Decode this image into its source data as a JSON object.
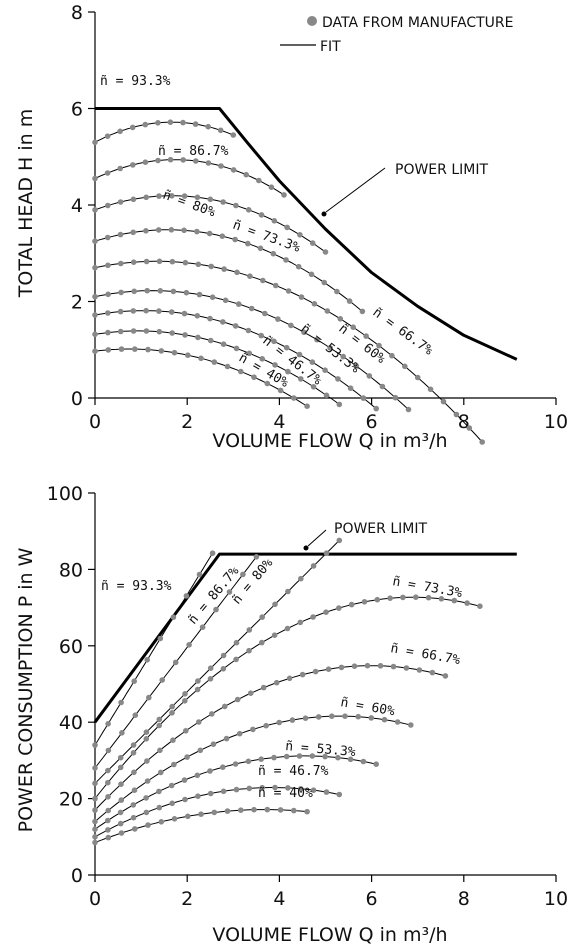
{
  "chart_data": [
    {
      "type": "line",
      "xlabel": "VOLUME FLOW Q in m³/h",
      "ylabel": "TOTAL HEAD H in m",
      "xlim": [
        0,
        10
      ],
      "ylim": [
        0,
        8
      ],
      "xticks": [
        0,
        2,
        4,
        6,
        8,
        10
      ],
      "yticks": [
        0,
        2,
        4,
        6,
        8
      ],
      "legend": {
        "position": "top-right",
        "entries": [
          {
            "name": "DATA FROM MANUFACTURE",
            "marker": "dot"
          },
          {
            "name": "FIT",
            "marker": "line"
          }
        ]
      },
      "power_limit_label": "POWER LIMIT",
      "power_limit": {
        "x": [
          0,
          2.7,
          3.3,
          4.0,
          5.0,
          6.0,
          7.0,
          8.0,
          9.15
        ],
        "y": [
          6.0,
          6.0,
          5.3,
          4.5,
          3.5,
          2.6,
          1.9,
          1.3,
          0.8
        ]
      },
      "series": [
        {
          "label": "ñ = 93.3%",
          "a": 5.3,
          "b": 0.5,
          "c": 0.15,
          "xmax": 3.0
        },
        {
          "label": "ñ = 86.7%",
          "a": 4.55,
          "b": 0.45,
          "c": 0.13,
          "xmax": 4.1
        },
        {
          "label": "ñ = 80%",
          "a": 3.9,
          "b": 0.35,
          "c": 0.105,
          "xmax": 5.0
        },
        {
          "label": "ñ = 73.3%",
          "a": 3.25,
          "b": 0.3,
          "c": 0.095,
          "xmax": 5.8
        },
        {
          "label": "ñ = 66.7%",
          "a": 2.7,
          "b": 0.2,
          "c": 0.075,
          "xmax": 8.4
        },
        {
          "label": "ñ = 60%",
          "a": 2.1,
          "b": 0.2,
          "c": 0.08,
          "xmax": 6.8
        },
        {
          "label": "ñ = 53.3%",
          "a": 1.72,
          "b": 0.17,
          "c": 0.08,
          "xmax": 6.1
        },
        {
          "label": "ñ = 46.7%",
          "a": 1.32,
          "b": 0.15,
          "c": 0.08,
          "xmax": 5.3
        },
        {
          "label": "ñ = 40%",
          "a": 0.97,
          "b": 0.12,
          "c": 0.08,
          "xmax": 4.6
        }
      ]
    },
    {
      "type": "line",
      "xlabel": "VOLUME FLOW Q in m³/h",
      "ylabel": "POWER CONSUMPTION P in W",
      "xlim": [
        0,
        10
      ],
      "ylim": [
        0,
        100
      ],
      "xticks": [
        0,
        2,
        4,
        6,
        8,
        10
      ],
      "yticks": [
        0,
        20,
        40,
        60,
        80,
        100
      ],
      "power_limit_label": "POWER LIMIT",
      "power_limit": {
        "x": [
          0,
          2.7,
          9.15
        ],
        "y": [
          40,
          84,
          84
        ]
      },
      "series": [
        {
          "label": "ñ = 93.3%",
          "p0": 34,
          "slope": 19.7,
          "curv": 0,
          "xmax": 2.55
        },
        {
          "label": "ñ = 86.7%",
          "p0": 28,
          "slope": 15.8,
          "curv": 0,
          "xmax": 3.5
        },
        {
          "label": "ñ = 80%",
          "p0": 24,
          "slope": 12.0,
          "curv": 0,
          "xmax": 5.3
        },
        {
          "label": "ñ = 73.3%",
          "p0": 20,
          "slope": 15.3,
          "curv": 1.11,
          "xmax": 8.35
        },
        {
          "label": "ñ = 66.7%",
          "p0": 17,
          "slope": 12.6,
          "curv": 1.05,
          "xmax": 7.6
        },
        {
          "label": "ñ = 60%",
          "p0": 14,
          "slope": 10.4,
          "curv": 0.98,
          "xmax": 6.85
        },
        {
          "label": "ñ = 53.3%",
          "p0": 12,
          "slope": 8.4,
          "curv": 0.92,
          "xmax": 6.1
        },
        {
          "label": "ñ = 46.7%",
          "p0": 10,
          "slope": 6.7,
          "curv": 0.87,
          "xmax": 5.3
        },
        {
          "label": "ñ = 40%",
          "p0": 8.5,
          "slope": 4.7,
          "curv": 0.64,
          "xmax": 4.6
        }
      ]
    }
  ],
  "style": {
    "data_color": "#888888",
    "fit_color": "#000000",
    "limit_color": "#000000"
  }
}
